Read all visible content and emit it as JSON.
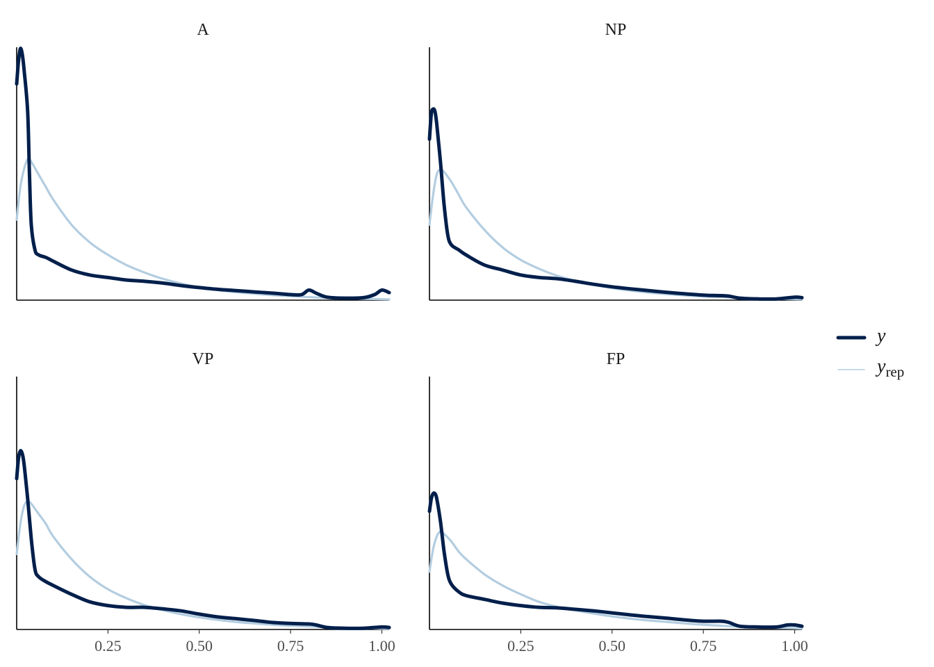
{
  "chart_data": {
    "type": "line",
    "xlim": [
      0,
      1.02
    ],
    "x_ticks": [
      0.25,
      0.5,
      0.75,
      1.0
    ],
    "x_tick_labels": [
      "0.25",
      "0.50",
      "0.75",
      "1.00"
    ],
    "grid": false,
    "legend_position": "right",
    "legend": {
      "y_label": "y",
      "yrep_main": "y",
      "yrep_sub": "rep"
    },
    "colors": {
      "y": "#011f4b",
      "yrep": "#b3cde0"
    },
    "panels": [
      {
        "title": "A",
        "ymax": 1.0,
        "y": [
          [
            0.0,
            0.86
          ],
          [
            0.005,
            0.95
          ],
          [
            0.01,
            1.0
          ],
          [
            0.015,
            0.98
          ],
          [
            0.02,
            0.92
          ],
          [
            0.03,
            0.75
          ],
          [
            0.035,
            0.5
          ],
          [
            0.04,
            0.3
          ],
          [
            0.05,
            0.2
          ],
          [
            0.06,
            0.18
          ],
          [
            0.08,
            0.17
          ],
          [
            0.1,
            0.155
          ],
          [
            0.15,
            0.12
          ],
          [
            0.2,
            0.1
          ],
          [
            0.25,
            0.09
          ],
          [
            0.3,
            0.08
          ],
          [
            0.35,
            0.075
          ],
          [
            0.4,
            0.068
          ],
          [
            0.45,
            0.058
          ],
          [
            0.5,
            0.05
          ],
          [
            0.55,
            0.043
          ],
          [
            0.6,
            0.038
          ],
          [
            0.65,
            0.033
          ],
          [
            0.7,
            0.028
          ],
          [
            0.75,
            0.022
          ],
          [
            0.78,
            0.022
          ],
          [
            0.8,
            0.04
          ],
          [
            0.82,
            0.028
          ],
          [
            0.85,
            0.012
          ],
          [
            0.9,
            0.008
          ],
          [
            0.95,
            0.01
          ],
          [
            0.98,
            0.022
          ],
          [
            1.0,
            0.04
          ],
          [
            1.02,
            0.03
          ]
        ],
        "yrep": [
          [
            0.0,
            0.32
          ],
          [
            0.01,
            0.45
          ],
          [
            0.02,
            0.52
          ],
          [
            0.03,
            0.56
          ],
          [
            0.04,
            0.55
          ],
          [
            0.06,
            0.5
          ],
          [
            0.08,
            0.45
          ],
          [
            0.1,
            0.4
          ],
          [
            0.15,
            0.3
          ],
          [
            0.2,
            0.23
          ],
          [
            0.25,
            0.18
          ],
          [
            0.3,
            0.14
          ],
          [
            0.35,
            0.11
          ],
          [
            0.4,
            0.085
          ],
          [
            0.45,
            0.066
          ],
          [
            0.5,
            0.051
          ],
          [
            0.55,
            0.04
          ],
          [
            0.6,
            0.032
          ],
          [
            0.65,
            0.026
          ],
          [
            0.7,
            0.02
          ],
          [
            0.75,
            0.016
          ],
          [
            0.8,
            0.012
          ],
          [
            0.85,
            0.009
          ],
          [
            0.9,
            0.007
          ],
          [
            0.95,
            0.005
          ],
          [
            1.0,
            0.004
          ],
          [
            1.02,
            0.003
          ]
        ]
      },
      {
        "title": "NP",
        "ymax": 1.0,
        "y": [
          [
            0.0,
            0.64
          ],
          [
            0.005,
            0.74
          ],
          [
            0.01,
            0.76
          ],
          [
            0.015,
            0.75
          ],
          [
            0.02,
            0.7
          ],
          [
            0.03,
            0.55
          ],
          [
            0.04,
            0.38
          ],
          [
            0.05,
            0.26
          ],
          [
            0.06,
            0.22
          ],
          [
            0.08,
            0.2
          ],
          [
            0.1,
            0.18
          ],
          [
            0.15,
            0.14
          ],
          [
            0.2,
            0.12
          ],
          [
            0.25,
            0.1
          ],
          [
            0.3,
            0.09
          ],
          [
            0.35,
            0.085
          ],
          [
            0.4,
            0.075
          ],
          [
            0.45,
            0.063
          ],
          [
            0.5,
            0.053
          ],
          [
            0.55,
            0.045
          ],
          [
            0.6,
            0.038
          ],
          [
            0.65,
            0.031
          ],
          [
            0.7,
            0.025
          ],
          [
            0.75,
            0.02
          ],
          [
            0.8,
            0.018
          ],
          [
            0.82,
            0.016
          ],
          [
            0.85,
            0.008
          ],
          [
            0.9,
            0.005
          ],
          [
            0.95,
            0.005
          ],
          [
            1.0,
            0.012
          ],
          [
            1.02,
            0.01
          ]
        ],
        "yrep": [
          [
            0.0,
            0.3
          ],
          [
            0.01,
            0.42
          ],
          [
            0.02,
            0.5
          ],
          [
            0.03,
            0.52
          ],
          [
            0.04,
            0.51
          ],
          [
            0.06,
            0.47
          ],
          [
            0.08,
            0.42
          ],
          [
            0.1,
            0.37
          ],
          [
            0.15,
            0.28
          ],
          [
            0.2,
            0.21
          ],
          [
            0.25,
            0.16
          ],
          [
            0.3,
            0.125
          ],
          [
            0.35,
            0.097
          ],
          [
            0.4,
            0.077
          ],
          [
            0.45,
            0.061
          ],
          [
            0.5,
            0.048
          ],
          [
            0.55,
            0.038
          ],
          [
            0.6,
            0.03
          ],
          [
            0.65,
            0.024
          ],
          [
            0.7,
            0.019
          ],
          [
            0.75,
            0.015
          ],
          [
            0.8,
            0.012
          ],
          [
            0.85,
            0.009
          ],
          [
            0.9,
            0.007
          ],
          [
            0.95,
            0.005
          ],
          [
            1.0,
            0.004
          ],
          [
            1.02,
            0.003
          ]
        ]
      },
      {
        "title": "VP",
        "ymax": 1.0,
        "y": [
          [
            0.0,
            0.6
          ],
          [
            0.005,
            0.68
          ],
          [
            0.01,
            0.71
          ],
          [
            0.015,
            0.7
          ],
          [
            0.02,
            0.66
          ],
          [
            0.03,
            0.52
          ],
          [
            0.04,
            0.36
          ],
          [
            0.05,
            0.24
          ],
          [
            0.06,
            0.21
          ],
          [
            0.08,
            0.19
          ],
          [
            0.1,
            0.175
          ],
          [
            0.15,
            0.14
          ],
          [
            0.2,
            0.11
          ],
          [
            0.25,
            0.095
          ],
          [
            0.3,
            0.088
          ],
          [
            0.35,
            0.088
          ],
          [
            0.4,
            0.082
          ],
          [
            0.45,
            0.074
          ],
          [
            0.5,
            0.061
          ],
          [
            0.55,
            0.05
          ],
          [
            0.6,
            0.043
          ],
          [
            0.65,
            0.036
          ],
          [
            0.7,
            0.028
          ],
          [
            0.75,
            0.024
          ],
          [
            0.8,
            0.022
          ],
          [
            0.82,
            0.018
          ],
          [
            0.85,
            0.008
          ],
          [
            0.9,
            0.005
          ],
          [
            0.95,
            0.005
          ],
          [
            1.0,
            0.01
          ],
          [
            1.02,
            0.008
          ]
        ],
        "yrep": [
          [
            0.0,
            0.3
          ],
          [
            0.01,
            0.42
          ],
          [
            0.02,
            0.49
          ],
          [
            0.03,
            0.51
          ],
          [
            0.04,
            0.5
          ],
          [
            0.06,
            0.46
          ],
          [
            0.08,
            0.42
          ],
          [
            0.1,
            0.37
          ],
          [
            0.15,
            0.28
          ],
          [
            0.2,
            0.21
          ],
          [
            0.25,
            0.16
          ],
          [
            0.3,
            0.125
          ],
          [
            0.35,
            0.097
          ],
          [
            0.4,
            0.077
          ],
          [
            0.45,
            0.061
          ],
          [
            0.5,
            0.048
          ],
          [
            0.55,
            0.038
          ],
          [
            0.6,
            0.03
          ],
          [
            0.65,
            0.024
          ],
          [
            0.7,
            0.019
          ],
          [
            0.75,
            0.015
          ],
          [
            0.8,
            0.012
          ],
          [
            0.85,
            0.009
          ],
          [
            0.9,
            0.007
          ],
          [
            0.95,
            0.005
          ],
          [
            1.0,
            0.004
          ],
          [
            1.02,
            0.003
          ]
        ]
      },
      {
        "title": "FP",
        "ymax": 1.0,
        "y": [
          [
            0.0,
            0.47
          ],
          [
            0.005,
            0.52
          ],
          [
            0.01,
            0.54
          ],
          [
            0.015,
            0.54
          ],
          [
            0.02,
            0.52
          ],
          [
            0.03,
            0.43
          ],
          [
            0.04,
            0.31
          ],
          [
            0.05,
            0.22
          ],
          [
            0.06,
            0.18
          ],
          [
            0.08,
            0.15
          ],
          [
            0.1,
            0.135
          ],
          [
            0.15,
            0.12
          ],
          [
            0.2,
            0.105
          ],
          [
            0.25,
            0.095
          ],
          [
            0.3,
            0.088
          ],
          [
            0.35,
            0.086
          ],
          [
            0.4,
            0.08
          ],
          [
            0.45,
            0.074
          ],
          [
            0.5,
            0.066
          ],
          [
            0.55,
            0.058
          ],
          [
            0.6,
            0.051
          ],
          [
            0.65,
            0.045
          ],
          [
            0.7,
            0.038
          ],
          [
            0.75,
            0.033
          ],
          [
            0.8,
            0.033
          ],
          [
            0.82,
            0.028
          ],
          [
            0.85,
            0.013
          ],
          [
            0.9,
            0.01
          ],
          [
            0.95,
            0.01
          ],
          [
            0.98,
            0.018
          ],
          [
            1.0,
            0.018
          ],
          [
            1.02,
            0.013
          ]
        ],
        "yrep": [
          [
            0.0,
            0.23
          ],
          [
            0.01,
            0.32
          ],
          [
            0.02,
            0.37
          ],
          [
            0.03,
            0.39
          ],
          [
            0.04,
            0.38
          ],
          [
            0.06,
            0.35
          ],
          [
            0.08,
            0.31
          ],
          [
            0.1,
            0.28
          ],
          [
            0.15,
            0.22
          ],
          [
            0.2,
            0.175
          ],
          [
            0.25,
            0.14
          ],
          [
            0.3,
            0.11
          ],
          [
            0.35,
            0.09
          ],
          [
            0.4,
            0.076
          ],
          [
            0.45,
            0.063
          ],
          [
            0.5,
            0.052
          ],
          [
            0.55,
            0.043
          ],
          [
            0.6,
            0.036
          ],
          [
            0.65,
            0.03
          ],
          [
            0.7,
            0.024
          ],
          [
            0.75,
            0.019
          ],
          [
            0.8,
            0.015
          ],
          [
            0.85,
            0.011
          ],
          [
            0.9,
            0.009
          ],
          [
            0.95,
            0.007
          ],
          [
            1.0,
            0.005
          ],
          [
            1.02,
            0.004
          ]
        ]
      }
    ]
  }
}
